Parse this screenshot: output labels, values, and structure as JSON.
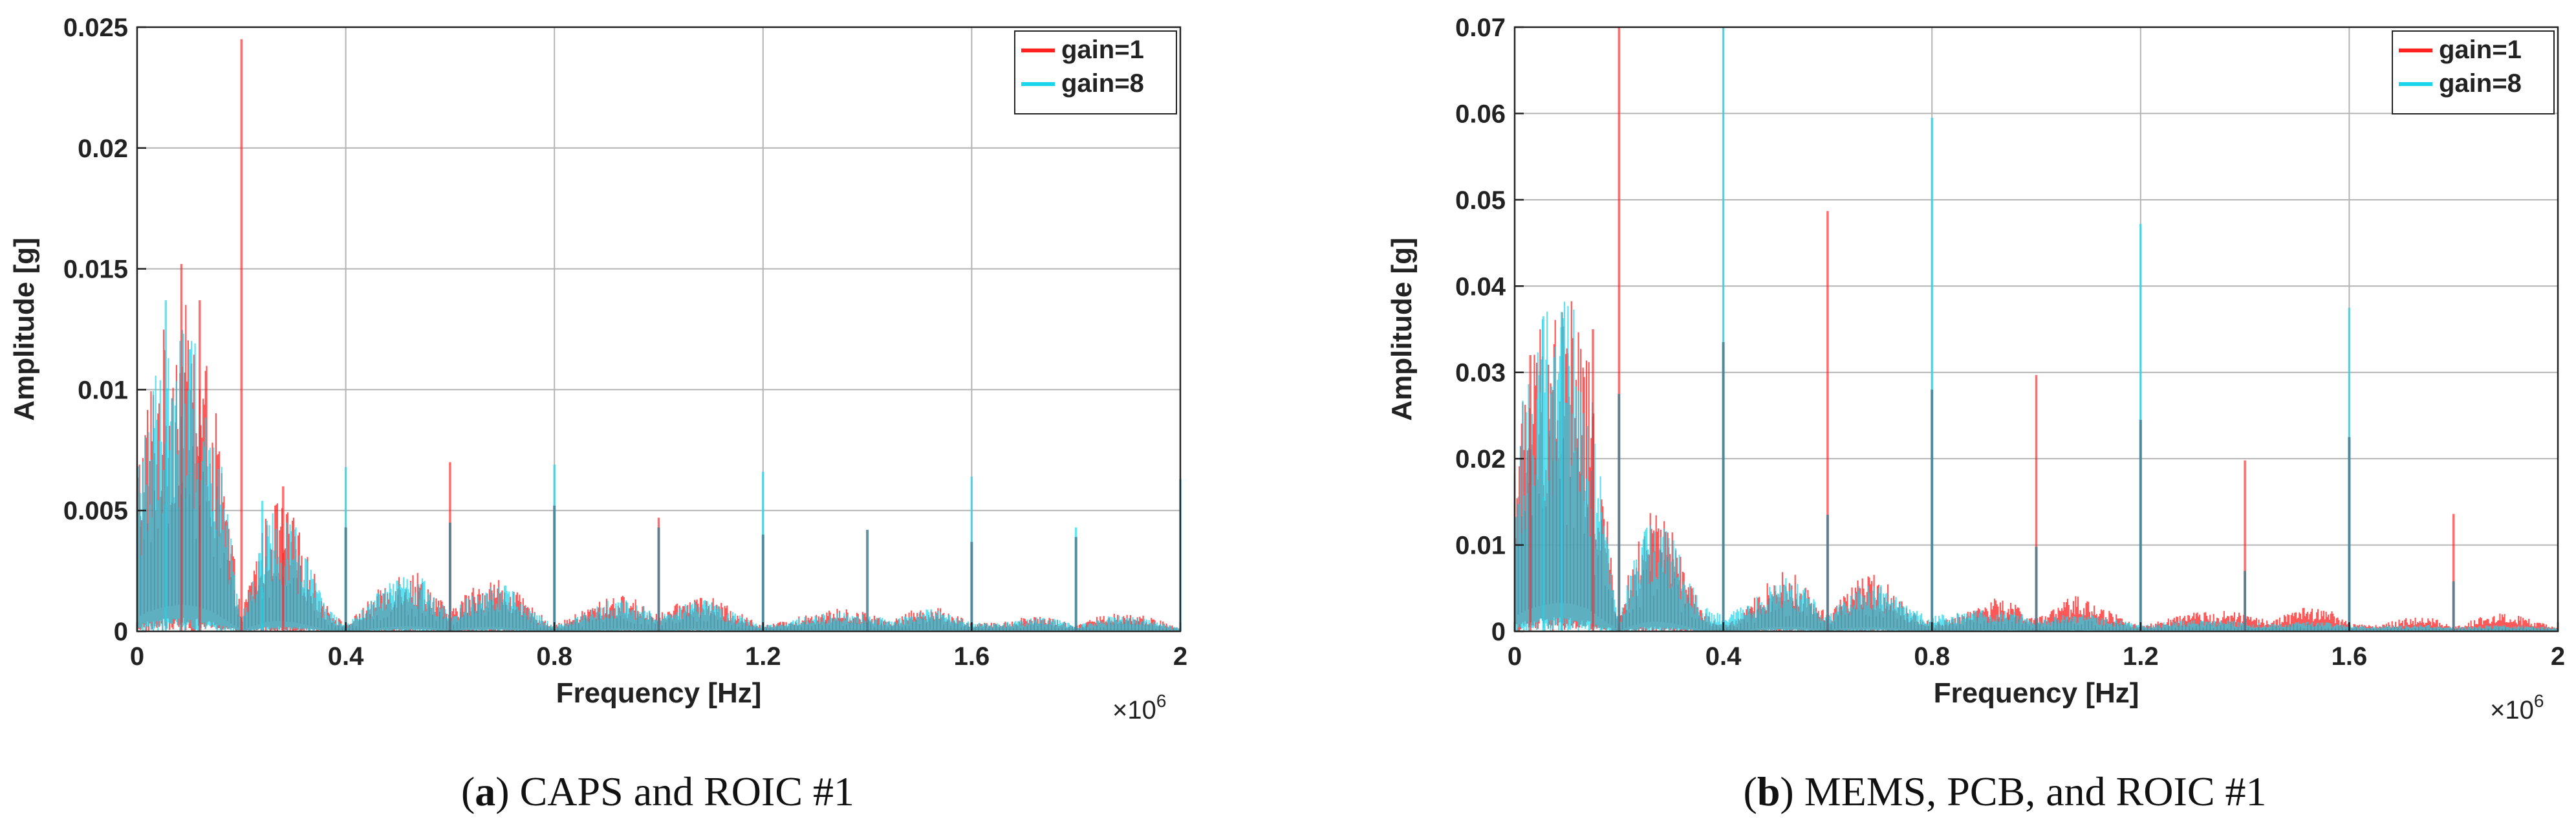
{
  "colors": {
    "gain1": "#ff2020",
    "gain8": "#19d6ec",
    "overlap": "#4a7f93",
    "grid": "#b4b4b4",
    "axis": "#222222"
  },
  "chart_data": [
    {
      "type": "line",
      "panel": "a",
      "caption_label": "a",
      "caption_text": " CAPS and ROIC #1",
      "caption_open": "(",
      "caption_close": ")",
      "xlabel": "Frequency [Hz]",
      "ylabel": "Amplitude [g]",
      "x_multiplier": "×10",
      "x_multiplier_exp": "6",
      "xlim": [
        0,
        2
      ],
      "ylim": [
        0,
        0.025
      ],
      "xticks": [
        0,
        0.4,
        0.8,
        1.2,
        1.6,
        2
      ],
      "xtick_labels": [
        "0",
        "0.4",
        "0.8",
        "1.2",
        "1.6",
        "2"
      ],
      "yticks": [
        0,
        0.005,
        0.01,
        0.015,
        0.02,
        0.025
      ],
      "ytick_labels": [
        "0",
        "0.005",
        "0.01",
        "0.015",
        "0.02",
        "0.025"
      ],
      "grid": true,
      "legend_position": "top-right",
      "series": [
        {
          "name": "gain=1",
          "color": "#ff2020",
          "envelope": {
            "x": [
              0,
              0.02,
              0.05,
              0.08,
              0.11,
              0.14,
              0.17,
              0.2,
              0.22,
              0.25,
              0.27,
              0.3,
              0.33,
              0.36,
              0.4,
              0.44,
              0.48,
              0.51,
              0.54,
              0.58,
              0.6,
              0.62,
              0.66,
              0.69,
              0.72,
              0.76,
              0.8,
              0.84,
              0.88,
              0.92,
              0.96,
              1.0,
              1.04,
              1.07,
              1.1,
              1.15,
              1.2,
              1.25,
              1.3,
              1.35,
              1.39,
              1.45,
              1.48,
              1.52,
              1.56,
              1.6,
              1.65,
              1.7,
              1.73,
              1.77,
              1.8,
              1.84,
              1.88,
              1.92,
              1.96,
              2.0
            ],
            "y": [
              0.006,
              0.0085,
              0.0105,
              0.0115,
              0.011,
              0.009,
              0.005,
              0.0005,
              0.0022,
              0.0042,
              0.0046,
              0.004,
              0.0025,
              0.001,
              0.0002,
              0.001,
              0.0018,
              0.0022,
              0.0021,
              0.0012,
              0.0006,
              0.0012,
              0.0018,
              0.0019,
              0.0015,
              0.0008,
              0.0002,
              0.0006,
              0.001,
              0.0013,
              0.0011,
              0.0006,
              0.001,
              0.0013,
              0.0012,
              0.0007,
              0.0002,
              0.0004,
              0.0007,
              0.0008,
              0.0007,
              0.0004,
              0.0007,
              0.0009,
              0.0007,
              0.0003,
              0.0003,
              0.0005,
              0.0006,
              0.0004,
              0.0002,
              0.0005,
              0.0007,
              0.0006,
              0.0004,
              0.0001
            ]
          },
          "spikes": [
            {
              "x": 0.2,
              "y": 0.0245
            },
            {
              "x": 0.6,
              "y": 0.007
            },
            {
              "x": 1.0,
              "y": 0.0047
            },
            {
              "x": 0.085,
              "y": 0.0152
            },
            {
              "x": 0.12,
              "y": 0.0137
            },
            {
              "x": 0.28,
              "y": 0.006
            }
          ]
        },
        {
          "name": "gain=8",
          "color": "#19d6ec",
          "envelope": {
            "x": [
              0,
              0.02,
              0.05,
              0.08,
              0.11,
              0.14,
              0.17,
              0.2,
              0.22,
              0.25,
              0.27,
              0.3,
              0.33,
              0.36,
              0.4,
              0.44,
              0.48,
              0.51,
              0.54,
              0.58,
              0.6,
              0.62,
              0.66,
              0.69,
              0.72,
              0.76,
              0.8,
              0.84,
              0.88,
              0.92,
              0.96,
              1.0,
              1.04,
              1.07,
              1.1,
              1.15,
              1.2,
              1.25,
              1.3,
              1.35,
              1.39,
              1.45,
              1.48,
              1.52,
              1.56,
              1.6,
              1.65,
              1.7,
              1.73,
              1.77,
              1.8,
              1.84,
              1.88,
              1.92,
              1.96,
              2.0
            ],
            "y": [
              0.0055,
              0.008,
              0.01,
              0.011,
              0.0105,
              0.0085,
              0.0047,
              0.0005,
              0.002,
              0.004,
              0.0044,
              0.0038,
              0.0024,
              0.0009,
              0.0002,
              0.0009,
              0.0017,
              0.0021,
              0.002,
              0.0011,
              0.0006,
              0.0011,
              0.0017,
              0.0018,
              0.0014,
              0.0007,
              0.0002,
              0.0005,
              0.0009,
              0.0012,
              0.001,
              0.0005,
              0.0009,
              0.0012,
              0.0011,
              0.0006,
              0.0002,
              0.0004,
              0.0006,
              0.0007,
              0.0006,
              0.0004,
              0.0006,
              0.0008,
              0.0006,
              0.0003,
              0.0003,
              0.0004,
              0.0005,
              0.0004,
              0.0002,
              0.0004,
              0.0006,
              0.0005,
              0.0003,
              0.0001
            ]
          },
          "spikes": [
            {
              "x": 0.055,
              "y": 0.0137
            },
            {
              "x": 0.4,
              "y": 0.0068
            },
            {
              "x": 0.8,
              "y": 0.0069
            },
            {
              "x": 1.2,
              "y": 0.0066
            },
            {
              "x": 1.6,
              "y": 0.0064
            },
            {
              "x": 2.0,
              "y": 0.0063
            },
            {
              "x": 0.24,
              "y": 0.0054
            },
            {
              "x": 1.8,
              "y": 0.0043
            }
          ]
        }
      ],
      "overlap_spikes": [
        {
          "x": 0.4,
          "y": 0.0043
        },
        {
          "x": 0.8,
          "y": 0.0052
        },
        {
          "x": 1.2,
          "y": 0.004
        },
        {
          "x": 1.4,
          "y": 0.0042
        },
        {
          "x": 1.6,
          "y": 0.0037
        },
        {
          "x": 1.8,
          "y": 0.0039
        },
        {
          "x": 0.6,
          "y": 0.0045
        },
        {
          "x": 1.0,
          "y": 0.0043
        }
      ]
    },
    {
      "type": "line",
      "panel": "b",
      "caption_label": "b",
      "caption_text": " MEMS, PCB, and ROIC #1",
      "caption_open": "(",
      "caption_close": ")",
      "xlabel": "Frequency [Hz]",
      "ylabel": "Amplitude [g]",
      "x_multiplier": "×10",
      "x_multiplier_exp": "6",
      "xlim": [
        0,
        2
      ],
      "ylim": [
        0,
        0.07
      ],
      "xticks": [
        0,
        0.4,
        0.8,
        1.2,
        1.6,
        2
      ],
      "xtick_labels": [
        "0",
        "0.4",
        "0.8",
        "1.2",
        "1.6",
        "2"
      ],
      "yticks": [
        0,
        0.01,
        0.02,
        0.03,
        0.04,
        0.05,
        0.06,
        0.07
      ],
      "ytick_labels": [
        "0",
        "0.01",
        "0.02",
        "0.03",
        "0.04",
        "0.05",
        "0.06",
        "0.07"
      ],
      "grid": true,
      "legend_position": "top-right",
      "series": [
        {
          "name": "gain=1",
          "color": "#ff2020",
          "envelope": {
            "x": [
              0,
              0.02,
              0.05,
              0.08,
              0.11,
              0.14,
              0.17,
              0.2,
              0.22,
              0.25,
              0.27,
              0.3,
              0.33,
              0.36,
              0.4,
              0.44,
              0.48,
              0.51,
              0.54,
              0.58,
              0.6,
              0.62,
              0.66,
              0.69,
              0.72,
              0.76,
              0.8,
              0.84,
              0.88,
              0.92,
              0.96,
              1.0,
              1.04,
              1.07,
              1.1,
              1.15,
              1.2,
              1.25,
              1.3,
              1.35,
              1.39,
              1.45,
              1.48,
              1.52,
              1.56,
              1.6,
              1.65,
              1.7,
              1.73,
              1.77,
              1.8,
              1.84,
              1.88,
              1.92,
              1.96,
              2.0
            ],
            "y": [
              0.018,
              0.025,
              0.031,
              0.034,
              0.033,
              0.027,
              0.014,
              0.001,
              0.006,
              0.011,
              0.012,
              0.01,
              0.006,
              0.002,
              0.0005,
              0.002,
              0.0045,
              0.0058,
              0.0055,
              0.003,
              0.0015,
              0.0035,
              0.0052,
              0.0055,
              0.0045,
              0.002,
              0.0008,
              0.0015,
              0.0025,
              0.0032,
              0.0028,
              0.0012,
              0.0025,
              0.0035,
              0.0032,
              0.0018,
              0.0005,
              0.0012,
              0.0018,
              0.0021,
              0.0018,
              0.001,
              0.0018,
              0.0025,
              0.0022,
              0.0008,
              0.0006,
              0.0012,
              0.0015,
              0.0012,
              0.0004,
              0.0012,
              0.0018,
              0.0016,
              0.001,
              0.0003
            ]
          },
          "spikes": [
            {
              "x": 0.2,
              "y": 0.07
            },
            {
              "x": 0.6,
              "y": 0.0487
            },
            {
              "x": 1.0,
              "y": 0.0297
            },
            {
              "x": 1.4,
              "y": 0.0198
            },
            {
              "x": 1.8,
              "y": 0.0136
            },
            {
              "x": 0.03,
              "y": 0.032
            },
            {
              "x": 0.15,
              "y": 0.035
            }
          ]
        },
        {
          "name": "gain=8",
          "color": "#19d6ec",
          "envelope": {
            "x": [
              0,
              0.02,
              0.05,
              0.08,
              0.11,
              0.14,
              0.17,
              0.2,
              0.22,
              0.25,
              0.27,
              0.3,
              0.33,
              0.36,
              0.4,
              0.44,
              0.48,
              0.51,
              0.54,
              0.58,
              0.6,
              0.62,
              0.66,
              0.69,
              0.72,
              0.76,
              0.8,
              0.84,
              0.88,
              0.92,
              0.96,
              1.0,
              1.04,
              1.07,
              1.1,
              1.15,
              1.2,
              1.25,
              1.3,
              1.35,
              1.39,
              1.45,
              1.48,
              1.52,
              1.56,
              1.6,
              1.65,
              1.7,
              1.73,
              1.77,
              1.8,
              1.84,
              1.88,
              1.92,
              1.96,
              2.0
            ],
            "y": [
              0.017,
              0.024,
              0.03,
              0.033,
              0.032,
              0.026,
              0.013,
              0.001,
              0.0055,
              0.0105,
              0.0115,
              0.0095,
              0.0055,
              0.0025,
              0.0015,
              0.0025,
              0.0042,
              0.0052,
              0.005,
              0.0028,
              0.0018,
              0.003,
              0.0045,
              0.0048,
              0.004,
              0.0022,
              0.0015,
              0.0018,
              0.002,
              0.0022,
              0.002,
              0.0012,
              0.0015,
              0.0018,
              0.0017,
              0.0012,
              0.0006,
              0.0009,
              0.0011,
              0.0011,
              0.001,
              0.0007,
              0.0009,
              0.001,
              0.0009,
              0.0006,
              0.0005,
              0.0006,
              0.0007,
              0.0006,
              0.0004,
              0.0005,
              0.0006,
              0.0006,
              0.0005,
              0.0003
            ]
          },
          "spikes": [
            {
              "x": 0.4,
              "y": 0.07
            },
            {
              "x": 0.8,
              "y": 0.0595
            },
            {
              "x": 1.2,
              "y": 0.0472
            },
            {
              "x": 1.6,
              "y": 0.0375
            },
            {
              "x": 0.055,
              "y": 0.0365
            },
            {
              "x": 0.09,
              "y": 0.037
            }
          ]
        }
      ],
      "overlap_spikes": [
        {
          "x": 0.2,
          "y": 0.0275
        },
        {
          "x": 0.4,
          "y": 0.0335
        },
        {
          "x": 0.6,
          "y": 0.0135
        },
        {
          "x": 0.8,
          "y": 0.028
        },
        {
          "x": 1.0,
          "y": 0.0098
        },
        {
          "x": 1.2,
          "y": 0.0245
        },
        {
          "x": 1.4,
          "y": 0.007
        },
        {
          "x": 1.6,
          "y": 0.0225
        },
        {
          "x": 1.8,
          "y": 0.0058
        }
      ]
    }
  ]
}
